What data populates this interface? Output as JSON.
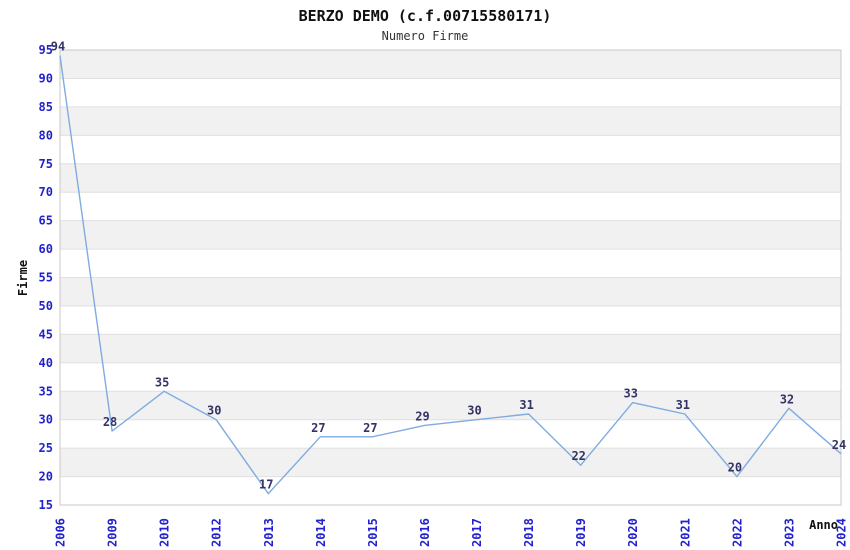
{
  "chart_data": {
    "type": "line",
    "title": "BERZO DEMO (c.f.00715580171)",
    "subtitle": "Numero Firme",
    "xlabel": "Anno",
    "ylabel": "Firme",
    "categories": [
      "2006",
      "2009",
      "2010",
      "2012",
      "2013",
      "2014",
      "2015",
      "2016",
      "2017",
      "2018",
      "2019",
      "2020",
      "2021",
      "2022",
      "2023",
      "2024"
    ],
    "values": [
      94,
      28,
      35,
      30,
      17,
      27,
      27,
      29,
      30,
      31,
      22,
      33,
      31,
      20,
      32,
      24
    ],
    "ylim": [
      15,
      95
    ],
    "ytick_step": 5,
    "grid": "horizontal-alternating-bands",
    "legend": "none",
    "point_labels_visible": true,
    "colors": {
      "line": "#7FACE0",
      "tick_label": "#2222CC",
      "point_label": "#333366",
      "band_fill": "#F1F1F1",
      "grid_line": "#E0E0E0",
      "plot_border": "#C8C8C8",
      "title": "#111111",
      "subtitle": "#333333",
      "axis_title": "#111111",
      "background": "#FFFFFF"
    }
  }
}
